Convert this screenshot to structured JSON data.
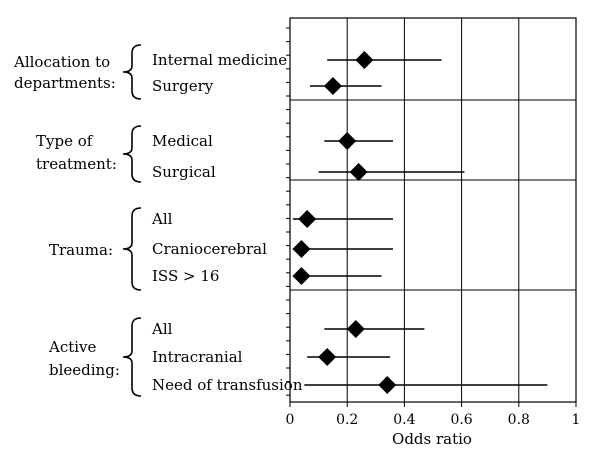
{
  "chart_data": {
    "type": "forest",
    "xlabel": "Odds ratio",
    "xlim": [
      0,
      1
    ],
    "x_ticks": [
      "0",
      "0.2",
      "0.4",
      "0.6",
      "0.8",
      "1"
    ],
    "x_tick_values": [
      0,
      0.2,
      0.4,
      0.6,
      0.8,
      1
    ],
    "vertical_grid": true,
    "groups": [
      {
        "label_lines": [
          "Allocation to",
          "departments:"
        ],
        "rows": [
          {
            "label": "Internal medicine",
            "estimate": 0.26,
            "ci_low": 0.13,
            "ci_high": 0.53
          },
          {
            "label": "Surgery",
            "estimate": 0.15,
            "ci_low": 0.07,
            "ci_high": 0.32
          }
        ]
      },
      {
        "label_lines": [
          "Type of",
          "treatment:"
        ],
        "rows": [
          {
            "label": "Medical",
            "estimate": 0.2,
            "ci_low": 0.12,
            "ci_high": 0.36
          },
          {
            "label": "Surgical",
            "estimate": 0.24,
            "ci_low": 0.1,
            "ci_high": 0.61
          }
        ]
      },
      {
        "label_lines": [
          "Trauma:"
        ],
        "rows": [
          {
            "label": "All",
            "estimate": 0.06,
            "ci_low": 0.01,
            "ci_high": 0.36
          },
          {
            "label": "Craniocerebral",
            "estimate": 0.04,
            "ci_low": 0.01,
            "ci_high": 0.36
          },
          {
            "label": "ISS > 16",
            "estimate": 0.04,
            "ci_low": 0.01,
            "ci_high": 0.32
          }
        ]
      },
      {
        "label_lines": [
          "Active",
          "bleeding:"
        ],
        "rows": [
          {
            "label": "All",
            "estimate": 0.23,
            "ci_low": 0.12,
            "ci_high": 0.47
          },
          {
            "label": "Intracranial",
            "estimate": 0.13,
            "ci_low": 0.06,
            "ci_high": 0.35
          },
          {
            "label": "Need of transfusion",
            "estimate": 0.34,
            "ci_low": 0.05,
            "ci_high": 0.9
          }
        ]
      }
    ]
  }
}
